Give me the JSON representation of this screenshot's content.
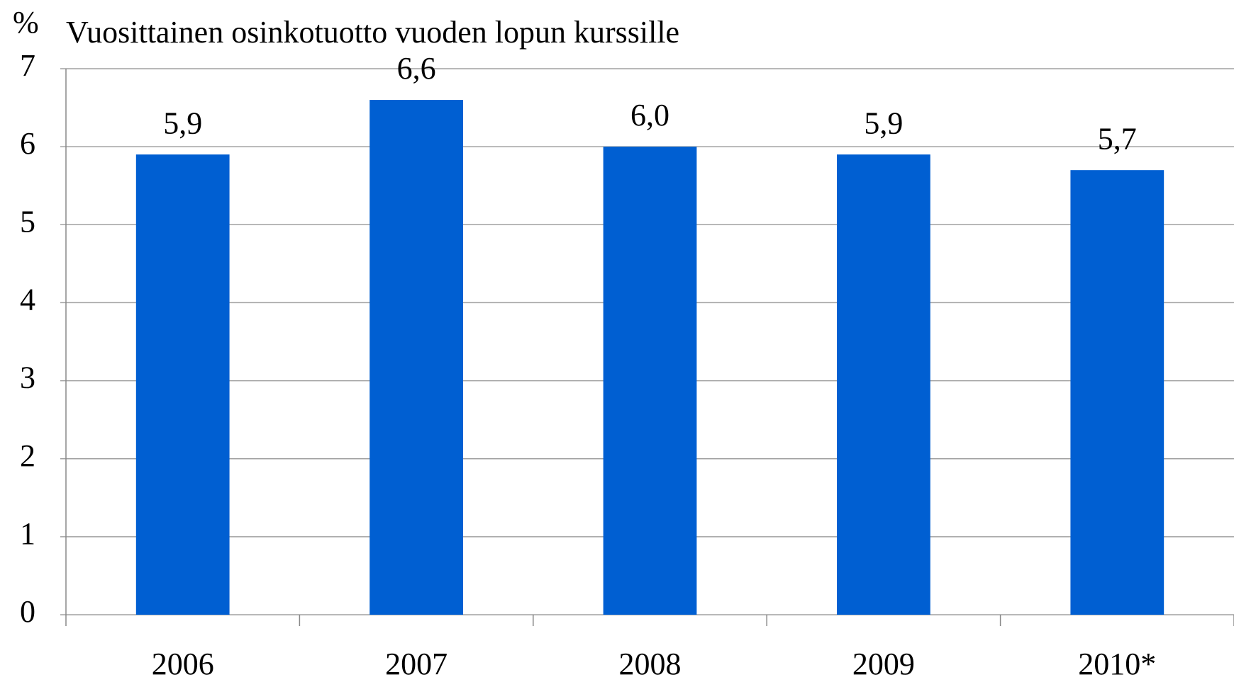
{
  "chart_data": {
    "type": "bar",
    "title": "Vuosittainen osinkotuotto vuoden lopun kurssille",
    "y_label": "%",
    "categories": [
      "2006",
      "2007",
      "2008",
      "2009",
      "2010*"
    ],
    "values": [
      5.9,
      6.6,
      6.0,
      5.9,
      5.7
    ],
    "value_labels": [
      "5,9",
      "6,6",
      "6,0",
      "5,9",
      "5,7"
    ],
    "color": "#005fd2",
    "ylim": [
      0,
      7
    ],
    "yticks": [
      0,
      1,
      2,
      3,
      4,
      5,
      6,
      7
    ],
    "grid": true
  }
}
